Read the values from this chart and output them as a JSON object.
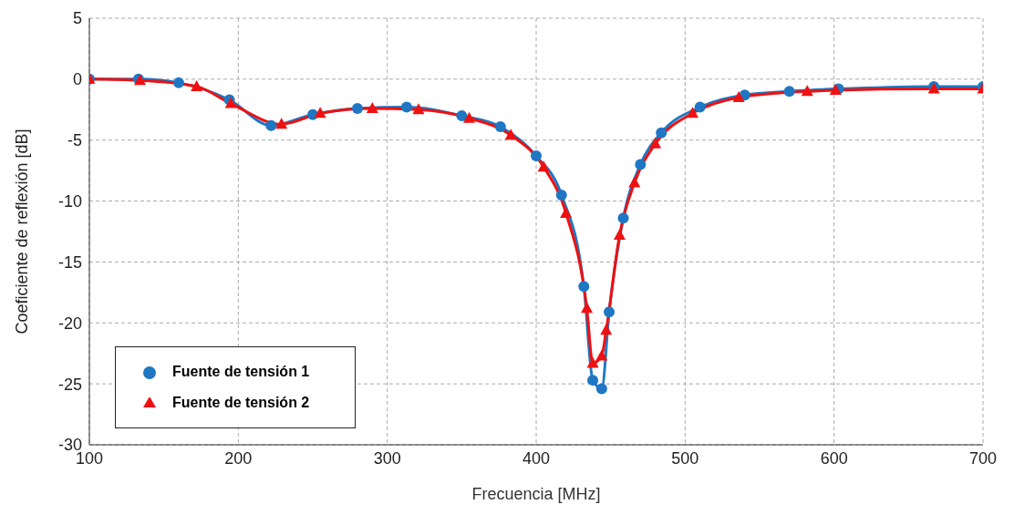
{
  "chart_data": {
    "type": "line",
    "xlabel": "Frecuencia [MHz]",
    "ylabel": "Coeficiente de reflexión [dB]",
    "xlim": [
      100,
      700
    ],
    "ylim": [
      -30,
      5
    ],
    "xticks": [
      100,
      200,
      300,
      400,
      500,
      600,
      700
    ],
    "yticks": [
      -30,
      -25,
      -20,
      -15,
      -10,
      -5,
      0,
      5
    ],
    "grid": true,
    "legend": "bottom left",
    "line_style": "solid",
    "series": [
      {
        "name": "Fuente de tensión 1",
        "color": "#1f77c4",
        "marker": "circle",
        "x": [
          100,
          133,
          160,
          194,
          222,
          250,
          280,
          313,
          350,
          376,
          400,
          417,
          432,
          438,
          444,
          449,
          458.5,
          470,
          484,
          510,
          540,
          570,
          603,
          667,
          700
        ],
        "values": [
          0,
          0,
          -0.3,
          -1.7,
          -3.8,
          -2.9,
          -2.4,
          -2.3,
          -3.0,
          -3.9,
          -6.3,
          -9.5,
          -17,
          -24.7,
          -25.4,
          -19.1,
          -11.4,
          -7,
          -4.4,
          -2.3,
          -1.3,
          -1.0,
          -0.8,
          -0.6,
          -0.6
        ]
      },
      {
        "name": "Fuente de tensión 2",
        "color": "#ee1111",
        "marker": "triangle",
        "x": [
          100,
          134,
          172,
          195,
          229,
          255,
          290,
          321,
          355,
          383,
          405,
          420,
          434,
          438,
          444,
          447,
          456,
          466,
          480,
          505,
          536,
          582,
          601,
          667,
          700
        ],
        "values": [
          0,
          -0.1,
          -0.6,
          -2.0,
          -3.7,
          -2.8,
          -2.4,
          -2.5,
          -3.2,
          -4.6,
          -7.2,
          -11.0,
          -18.8,
          -23.3,
          -22.7,
          -20.6,
          -12.8,
          -8.5,
          -5.3,
          -2.8,
          -1.5,
          -1.0,
          -0.9,
          -0.8,
          -0.8
        ]
      }
    ]
  }
}
